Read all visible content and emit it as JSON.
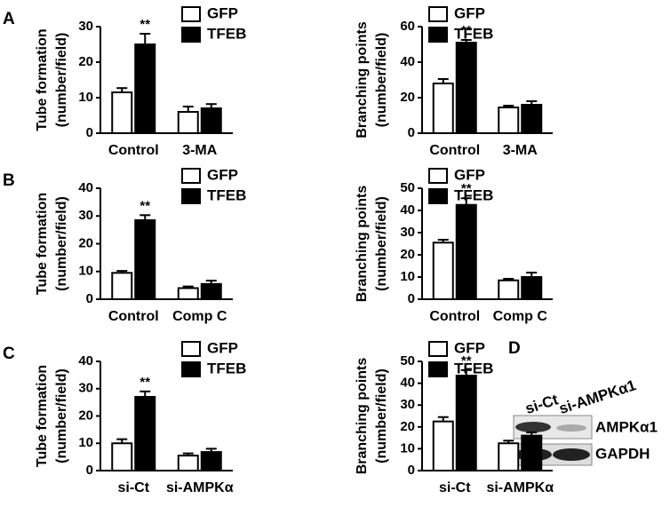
{
  "chart_data": [
    {
      "type": "bar",
      "panel": "A",
      "ylabel": [
        "Tube formation",
        "(number/field)"
      ],
      "categories": [
        "Control",
        "3-MA"
      ],
      "ylim": [
        0,
        30
      ],
      "yticks": [
        0,
        10,
        20,
        30
      ],
      "annotation": "**",
      "series": [
        {
          "name": "GFP",
          "color": "#ffffff",
          "values": [
            11.5,
            6
          ],
          "errors": [
            1.2,
            1.5
          ]
        },
        {
          "name": "TFEB",
          "color": "#000000",
          "values": [
            25,
            7
          ],
          "errors": [
            3,
            1.2
          ]
        }
      ]
    },
    {
      "type": "bar",
      "ylabel": [
        "Branching points",
        "(number/field)"
      ],
      "categories": [
        "Control",
        "3-MA"
      ],
      "ylim": [
        0,
        60
      ],
      "yticks": [
        0,
        20,
        40,
        60
      ],
      "annotation": "**",
      "series": [
        {
          "name": "GFP",
          "color": "#ffffff",
          "values": [
            28,
            14.5
          ],
          "errors": [
            2.5,
            1
          ]
        },
        {
          "name": "TFEB",
          "color": "#000000",
          "values": [
            51,
            16
          ],
          "errors": [
            1.5,
            2
          ]
        }
      ]
    },
    {
      "type": "bar",
      "panel": "B",
      "ylabel": [
        "Tube formation",
        "(number/field)"
      ],
      "categories": [
        "Control",
        "Comp C"
      ],
      "ylim": [
        0,
        40
      ],
      "yticks": [
        0,
        10,
        20,
        30,
        40
      ],
      "annotation": "**",
      "series": [
        {
          "name": "GFP",
          "color": "#ffffff",
          "values": [
            9.5,
            4
          ],
          "errors": [
            0.7,
            0.6
          ]
        },
        {
          "name": "TFEB",
          "color": "#000000",
          "values": [
            28.5,
            5.5
          ],
          "errors": [
            1.8,
            1.2
          ]
        }
      ]
    },
    {
      "type": "bar",
      "ylabel": [
        "Branching points",
        "(number/field)"
      ],
      "categories": [
        "Control",
        "Comp C"
      ],
      "ylim": [
        0,
        50
      ],
      "yticks": [
        0,
        10,
        20,
        30,
        40,
        50
      ],
      "annotation": "**",
      "series": [
        {
          "name": "GFP",
          "color": "#ffffff",
          "values": [
            25.5,
            8.5
          ],
          "errors": [
            1.3,
            0.7
          ]
        },
        {
          "name": "TFEB",
          "color": "#000000",
          "values": [
            42.5,
            10
          ],
          "errors": [
            3,
            2
          ]
        }
      ]
    },
    {
      "type": "bar",
      "panel": "C",
      "ylabel": [
        "Tube formation",
        "(number/field)"
      ],
      "categories": [
        "si-Ct",
        "si-AMPKα"
      ],
      "ylim": [
        0,
        40
      ],
      "yticks": [
        0,
        10,
        20,
        30,
        40
      ],
      "annotation": "**",
      "series": [
        {
          "name": "GFP",
          "color": "#ffffff",
          "values": [
            10,
            5.5
          ],
          "errors": [
            1.5,
            0.8
          ]
        },
        {
          "name": "TFEB",
          "color": "#000000",
          "values": [
            27,
            6.8
          ],
          "errors": [
            2,
            1.2
          ]
        }
      ]
    },
    {
      "type": "bar",
      "ylabel": [
        "Branching points",
        "(number/field)"
      ],
      "categories": [
        "si-Ct",
        "si-AMPKα"
      ],
      "ylim": [
        0,
        50
      ],
      "yticks": [
        0,
        10,
        20,
        30,
        40,
        50
      ],
      "annotation": "**",
      "series": [
        {
          "name": "GFP",
          "color": "#ffffff",
          "values": [
            22.5,
            12.5
          ],
          "errors": [
            2,
            1.2
          ]
        },
        {
          "name": "TFEB",
          "color": "#000000",
          "values": [
            43.5,
            16
          ],
          "errors": [
            2.5,
            1.5
          ]
        }
      ]
    }
  ],
  "blot": {
    "panel": "D",
    "lanes": [
      "si-Ct",
      "si-AMPKα1"
    ],
    "rows": [
      "AMPKα1",
      "GAPDH"
    ]
  }
}
